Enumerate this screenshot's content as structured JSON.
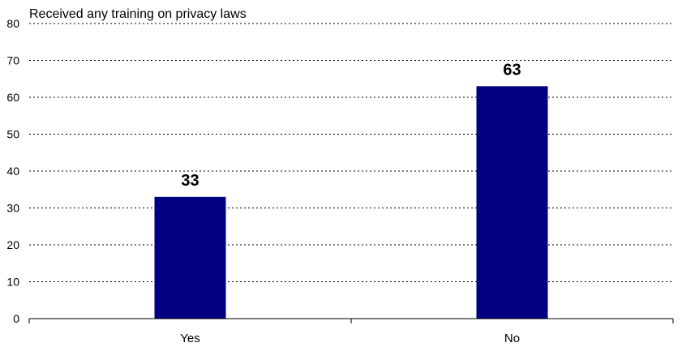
{
  "chart_data": {
    "type": "bar",
    "title": "Received any training on privacy laws",
    "categories": [
      "Yes",
      "No"
    ],
    "values": [
      33,
      63
    ],
    "ylim": [
      0,
      80
    ],
    "yticks": [
      0,
      10,
      20,
      30,
      40,
      50,
      60,
      70,
      80
    ],
    "grid": true,
    "bar_color": "#000080"
  }
}
